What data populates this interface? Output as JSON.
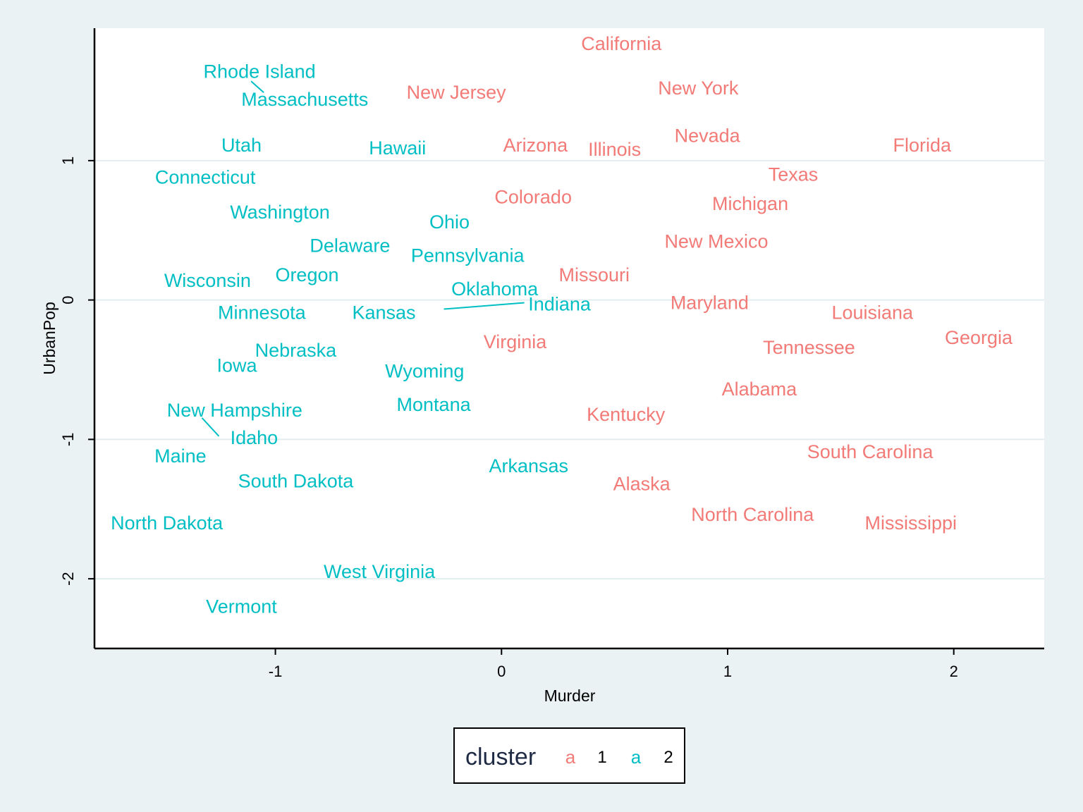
{
  "colors": {
    "cluster_1": "#f27a77",
    "cluster_2": "#00bfc4",
    "background": "#eaf2f3",
    "panel": "#ffffff",
    "grid": "#e3eeef"
  },
  "chart_data": {
    "type": "scatter",
    "title": "",
    "xlabel": "Murder",
    "ylabel": "UrbanPop",
    "xlim": [
      -1.8,
      2.4
    ],
    "ylim": [
      -2.5,
      1.95
    ],
    "x_ticks": [
      -1,
      0,
      1,
      2
    ],
    "y_ticks": [
      -2,
      -1,
      0,
      1
    ],
    "x_tick_labels": [
      "-1",
      "0",
      "1",
      "2"
    ],
    "y_tick_labels": [
      "-2",
      "-1",
      "0",
      "1"
    ],
    "grid": "horizontal",
    "legend": {
      "title": "cluster",
      "position": "bottom",
      "symbol": "a",
      "entries": [
        {
          "name": "1",
          "color": "#f27a77"
        },
        {
          "name": "2",
          "color": "#00bfc4"
        }
      ]
    },
    "series": [
      {
        "name": "1",
        "color": "#f27a77",
        "points": [
          {
            "label": "California",
            "x": 0.53,
            "y": 1.84
          },
          {
            "label": "New York",
            "x": 0.87,
            "y": 1.52
          },
          {
            "label": "New Jersey",
            "x": -0.2,
            "y": 1.49
          },
          {
            "label": "Nevada",
            "x": 0.91,
            "y": 1.18
          },
          {
            "label": "Florida",
            "x": 1.86,
            "y": 1.11
          },
          {
            "label": "Arizona",
            "x": 0.15,
            "y": 1.11
          },
          {
            "label": "Illinois",
            "x": 0.5,
            "y": 1.08
          },
          {
            "label": "Texas",
            "x": 1.29,
            "y": 0.9
          },
          {
            "label": "Colorado",
            "x": 0.14,
            "y": 0.74
          },
          {
            "label": "Michigan",
            "x": 1.1,
            "y": 0.69
          },
          {
            "label": "New Mexico",
            "x": 0.95,
            "y": 0.42
          },
          {
            "label": "Missouri",
            "x": 0.41,
            "y": 0.18
          },
          {
            "label": "Maryland",
            "x": 0.92,
            "y": -0.02
          },
          {
            "label": "Louisiana",
            "x": 1.64,
            "y": -0.09
          },
          {
            "label": "Georgia",
            "x": 2.11,
            "y": -0.27
          },
          {
            "label": "Virginia",
            "x": 0.06,
            "y": -0.3
          },
          {
            "label": "Tennessee",
            "x": 1.36,
            "y": -0.34
          },
          {
            "label": "Alabama",
            "x": 1.14,
            "y": -0.64
          },
          {
            "label": "Kentucky",
            "x": 0.55,
            "y": -0.82
          },
          {
            "label": "South Carolina",
            "x": 1.63,
            "y": -1.09
          },
          {
            "label": "Alaska",
            "x": 0.62,
            "y": -1.32
          },
          {
            "label": "North Carolina",
            "x": 1.11,
            "y": -1.54
          },
          {
            "label": "Mississippi",
            "x": 1.81,
            "y": -1.6
          }
        ]
      },
      {
        "name": "2",
        "color": "#00bfc4",
        "points": [
          {
            "label": "Rhode Island",
            "x": -1.07,
            "y": 1.64
          },
          {
            "label": "Massachusetts",
            "x": -0.87,
            "y": 1.44
          },
          {
            "label": "Utah",
            "x": -1.15,
            "y": 1.11
          },
          {
            "label": "Hawaii",
            "x": -0.46,
            "y": 1.09
          },
          {
            "label": "Connecticut",
            "x": -1.31,
            "y": 0.88
          },
          {
            "label": "Washington",
            "x": -0.98,
            "y": 0.63
          },
          {
            "label": "Ohio",
            "x": -0.23,
            "y": 0.56
          },
          {
            "label": "Delaware",
            "x": -0.67,
            "y": 0.39
          },
          {
            "label": "Pennsylvania",
            "x": -0.15,
            "y": 0.32
          },
          {
            "label": "Wisconsin",
            "x": -1.3,
            "y": 0.14
          },
          {
            "label": "Oregon",
            "x": -0.86,
            "y": 0.18
          },
          {
            "label": "Oklahoma",
            "x": -0.03,
            "y": 0.08
          },
          {
            "label": "Indiana",
            "x": -0.13,
            "y": -0.03
          },
          {
            "label": "Minnesota",
            "x": -1.06,
            "y": -0.09
          },
          {
            "label": "Kansas",
            "x": -0.52,
            "y": -0.09
          },
          {
            "label": "Nebraska",
            "x": -0.91,
            "y": -0.36
          },
          {
            "label": "Iowa",
            "x": -1.17,
            "y": -0.47
          },
          {
            "label": "Wyoming",
            "x": -0.34,
            "y": -0.51
          },
          {
            "label": "Montana",
            "x": -0.3,
            "y": -0.75
          },
          {
            "label": "New Hampshire",
            "x": -1.18,
            "y": -0.79
          },
          {
            "label": "Idaho",
            "x": -1.2,
            "y": -0.81
          },
          {
            "label": "Maine",
            "x": -1.42,
            "y": -1.12
          },
          {
            "label": "Arkansas",
            "x": 0.12,
            "y": -1.19
          },
          {
            "label": "South Dakota",
            "x": -0.91,
            "y": -1.3
          },
          {
            "label": "North Dakota",
            "x": -1.48,
            "y": -1.6
          },
          {
            "label": "West Virginia",
            "x": -0.54,
            "y": -1.95
          },
          {
            "label": "Vermont",
            "x": -1.15,
            "y": -2.2
          }
        ]
      }
    ]
  }
}
